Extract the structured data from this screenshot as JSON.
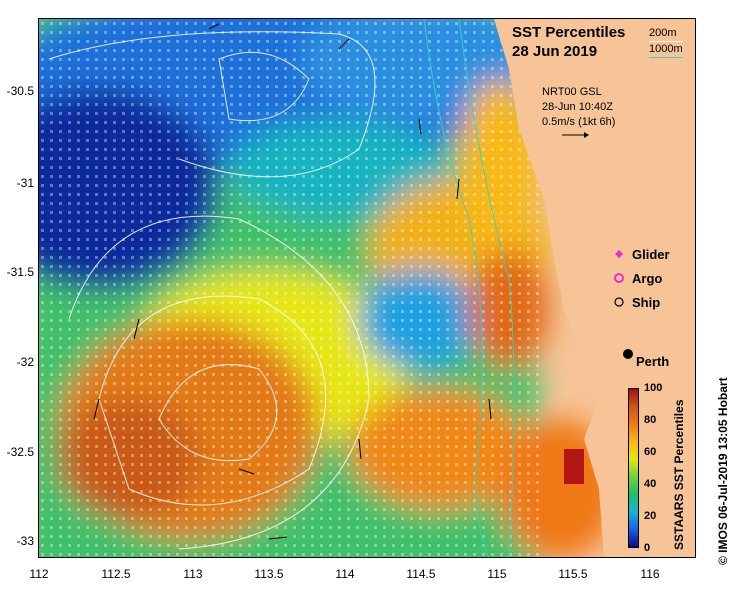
{
  "title": "SST Percentiles",
  "date": "28 Jun 2019",
  "contours": {
    "shallow_label": "200m",
    "deep_label": "1000m",
    "shallow_color": "#ffffff",
    "deep_color": "#39d0c8"
  },
  "currents": {
    "source": "NRT00 GSL",
    "time": "28-Jun 10:40Z",
    "scale": "0.5m/s (1kt 6h)"
  },
  "legend": [
    {
      "label": "Glider",
      "color": "#e830d0",
      "symbol": "diamond"
    },
    {
      "label": "Argo",
      "color": "#e830d0",
      "symbol": "circle"
    },
    {
      "label": "Ship",
      "color": "#000000",
      "symbol": "circle"
    }
  ],
  "city": "Perth",
  "colorbar": {
    "title": "SSTAARS SST Percentiles",
    "ticks": [
      "100",
      "80",
      "60",
      "40",
      "20",
      "0"
    ],
    "colors": [
      "#0a0a8a",
      "#1e5fe0",
      "#19b3d9",
      "#1fbf6a",
      "#6fd23a",
      "#e6e614",
      "#f8b814",
      "#f07818",
      "#c85a14",
      "#a01010"
    ]
  },
  "axes": {
    "x_ticks": [
      "112",
      "112.5",
      "113",
      "113.5",
      "114",
      "114.5",
      "115",
      "115.5",
      "116"
    ],
    "y_ticks": [
      "-30.5",
      "-31",
      "-31.5",
      "-32",
      "-32.5",
      "-33"
    ],
    "xlim": [
      112,
      116.3
    ],
    "ylim": [
      -33.15,
      -30.05
    ]
  },
  "credit": "© IMOS 06-Jul-2019 13:05 Hobart"
}
